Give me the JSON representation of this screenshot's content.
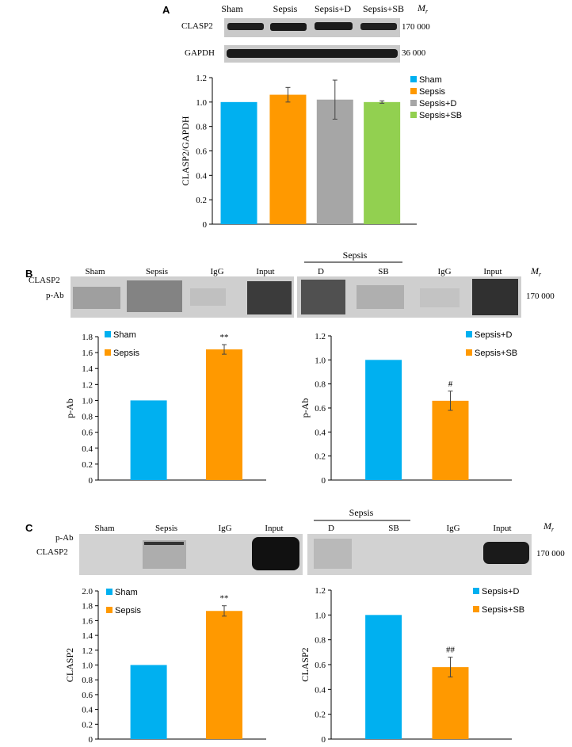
{
  "colors": {
    "sham": "#00b0f0",
    "sepsis": "#ff9900",
    "sepsis_d": "#a6a6a6",
    "sepsis_sb": "#92d050",
    "blot_bg": "#cfcfcf",
    "band": "#1c1c1c"
  },
  "panelA": {
    "letter": "A",
    "lanes": [
      "Sham",
      "Sepsis",
      "Sepsis+D",
      "Sepsis+SB"
    ],
    "mr": "M",
    "mr_sub": "r",
    "rows": [
      {
        "label": "CLASP2",
        "mw": "170 000"
      },
      {
        "label": "GAPDH",
        "mw": "36 000"
      }
    ]
  },
  "panelB": {
    "letter": "B",
    "sepsis_header": "Sepsis",
    "lanes_left": [
      "Sham",
      "Sepsis",
      "IgG",
      "Input"
    ],
    "lanes_right": [
      "D",
      "SB",
      "IgG",
      "Input"
    ],
    "row_labels": [
      "CLASP2",
      "p-Ab"
    ],
    "mr": "M",
    "mr_sub": "r",
    "mw": "170 000"
  },
  "panelC": {
    "letter": "C",
    "sepsis_header": "Sepsis",
    "lanes_left": [
      "Sham",
      "Sepsis",
      "IgG",
      "Input"
    ],
    "lanes_right": [
      "D",
      "SB",
      "IgG",
      "Input"
    ],
    "row_labels": [
      "p-Ab",
      "CLASP2"
    ],
    "mr": "M",
    "mr_sub": "r",
    "mw": "170 000"
  },
  "chart_data": [
    {
      "id": "A",
      "type": "bar",
      "ylabel": "CLASP2/GAPDH",
      "ylim": [
        0,
        1.2
      ],
      "yticks": [
        "0",
        "0.2",
        "0.4",
        "0.6",
        "0.8",
        "1.0",
        "1.2"
      ],
      "legend_position": "right",
      "categories": [
        "Sham",
        "Sepsis",
        "Sepsis+D",
        "Sepsis+SB"
      ],
      "values": [
        1.0,
        1.06,
        1.02,
        1.0
      ],
      "errors": [
        0,
        0.06,
        0.16,
        0.01
      ],
      "annotations": [
        "",
        "",
        "",
        ""
      ],
      "legend": [
        "Sham",
        "Sepsis",
        "Sepsis+D",
        "Sepsis+SB"
      ],
      "color_keys": [
        "sham",
        "sepsis",
        "sepsis_d",
        "sepsis_sb"
      ]
    },
    {
      "id": "B1",
      "type": "bar",
      "ylabel": "p-Ab",
      "ylim": [
        0,
        1.8
      ],
      "yticks": [
        "0",
        "0.2",
        "0.4",
        "0.6",
        "0.8",
        "1.0",
        "1.2",
        "1.4",
        "1.6",
        "1.8"
      ],
      "legend_position": "top-left",
      "categories": [
        "Sham",
        "Sepsis"
      ],
      "values": [
        1.0,
        1.64
      ],
      "errors": [
        0,
        0.06
      ],
      "annotations": [
        "",
        "**"
      ],
      "legend": [
        "Sham",
        "Sepsis"
      ],
      "color_keys": [
        "sham",
        "sepsis"
      ]
    },
    {
      "id": "B2",
      "type": "bar",
      "ylabel": "p-Ab",
      "ylim": [
        0,
        1.2
      ],
      "yticks": [
        "0",
        "0.2",
        "0.4",
        "0.6",
        "0.8",
        "1.0",
        "1.2"
      ],
      "legend_position": "top-right",
      "categories": [
        "Sepsis+D",
        "Sepsis+SB"
      ],
      "values": [
        1.0,
        0.66
      ],
      "errors": [
        0,
        0.08
      ],
      "annotations": [
        "",
        "#"
      ],
      "legend": [
        "Sepsis+D",
        "Sepsis+SB"
      ],
      "color_keys": [
        "sham",
        "sepsis"
      ]
    },
    {
      "id": "C1",
      "type": "bar",
      "ylabel": "CLASP2",
      "ylim": [
        0,
        2.0
      ],
      "yticks": [
        "0",
        "0.2",
        "0.4",
        "0.6",
        "0.8",
        "1.0",
        "1.2",
        "1.4",
        "1.6",
        "1.8",
        "2.0"
      ],
      "legend_position": "top-left",
      "categories": [
        "Sham",
        "Sepsis"
      ],
      "values": [
        1.0,
        1.73
      ],
      "errors": [
        0,
        0.07
      ],
      "annotations": [
        "",
        "**"
      ],
      "legend": [
        "Sham",
        "Sepsis"
      ],
      "color_keys": [
        "sham",
        "sepsis"
      ]
    },
    {
      "id": "C2",
      "type": "bar",
      "ylabel": "CLASP2",
      "ylim": [
        0,
        1.2
      ],
      "yticks": [
        "0",
        "0.2",
        "0.4",
        "0.6",
        "0.8",
        "1.0",
        "1.2"
      ],
      "legend_position": "top-right",
      "categories": [
        "Sepsis+D",
        "Sepsis+SB"
      ],
      "values": [
        1.0,
        0.58
      ],
      "errors": [
        0,
        0.08
      ],
      "annotations": [
        "",
        "##"
      ],
      "legend": [
        "Sepsis+D",
        "Sepsis+SB"
      ],
      "color_keys": [
        "sham",
        "sepsis"
      ]
    }
  ]
}
